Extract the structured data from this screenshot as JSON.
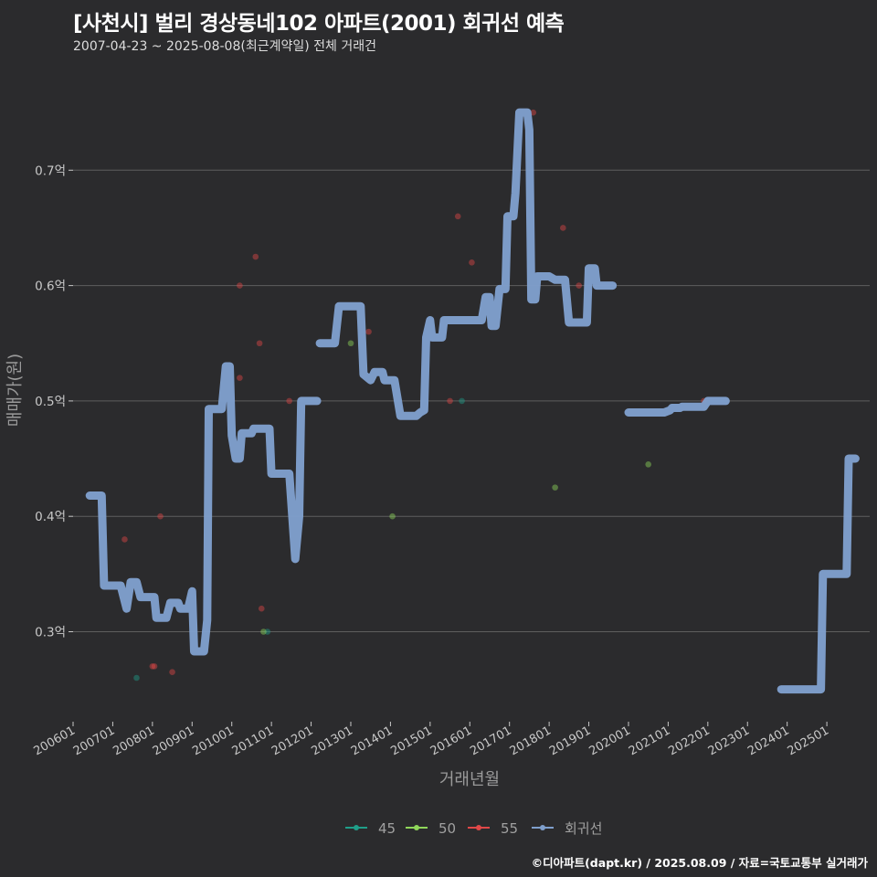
{
  "title": "[사천시] 벌리 경상동네102 아파트(2001) 회귀선 예측",
  "subtitle": "2007-04-23 ~ 2025-08-08(최근계약일) 전체 거래건",
  "caption": "©디아파트(dapt.kr) / 2025.08.09 / 자료=국토교통부 실거래가",
  "colors": {
    "background": "#2b2b2d",
    "grid": "#5e5e5e",
    "s45": "#1f9e89",
    "s50": "#8fd65a",
    "s55": "#e04848",
    "regression": "#7f9fcc"
  },
  "chart_data": {
    "type": "line",
    "xlabel": "거래년월",
    "ylabel": "매매가(원)",
    "xlim": [
      2006.0,
      2026.08
    ],
    "ylim": [
      0.222,
      0.8
    ],
    "y_ticks": [
      {
        "value": 0.3,
        "label": "0.3억"
      },
      {
        "value": 0.4,
        "label": "0.4억"
      },
      {
        "value": 0.5,
        "label": "0.5억"
      },
      {
        "value": 0.6,
        "label": "0.6억"
      },
      {
        "value": 0.7,
        "label": "0.7억"
      }
    ],
    "x_ticks": [
      {
        "value": 2006,
        "label": "200601"
      },
      {
        "value": 2007,
        "label": "200701"
      },
      {
        "value": 2008,
        "label": "200801"
      },
      {
        "value": 2009,
        "label": "200901"
      },
      {
        "value": 2010,
        "label": "201001"
      },
      {
        "value": 2011,
        "label": "201101"
      },
      {
        "value": 2012,
        "label": "201201"
      },
      {
        "value": 2013,
        "label": "201301"
      },
      {
        "value": 2014,
        "label": "201401"
      },
      {
        "value": 2015,
        "label": "201501"
      },
      {
        "value": 2016,
        "label": "201601"
      },
      {
        "value": 2017,
        "label": "201701"
      },
      {
        "value": 2018,
        "label": "201801"
      },
      {
        "value": 2019,
        "label": "201901"
      },
      {
        "value": 2020,
        "label": "202001"
      },
      {
        "value": 2021,
        "label": "202101"
      },
      {
        "value": 2022,
        "label": "202201"
      },
      {
        "value": 2023,
        "label": "202301"
      },
      {
        "value": 2024,
        "label": "202401"
      },
      {
        "value": 2025,
        "label": "202501"
      }
    ],
    "legend": {
      "position": "bottom",
      "items": [
        {
          "label": "45",
          "color": "#1f9e89"
        },
        {
          "label": "50",
          "color": "#8fd65a"
        },
        {
          "label": "55",
          "color": "#e04848"
        },
        {
          "label": "회귀선",
          "color": "#7f9fcc"
        }
      ]
    },
    "scatter": [
      {
        "group": "45",
        "points": [
          [
            2007.6,
            0.26
          ],
          [
            2010.9,
            0.3
          ],
          [
            2015.8,
            0.5
          ]
        ]
      },
      {
        "group": "50",
        "points": [
          [
            2010.8,
            0.3
          ],
          [
            2013.0,
            0.55
          ],
          [
            2014.05,
            0.4
          ],
          [
            2018.15,
            0.425
          ],
          [
            2020.5,
            0.445
          ]
        ]
      },
      {
        "group": "55",
        "points": [
          [
            2007.3,
            0.38
          ],
          [
            2008.0,
            0.27
          ],
          [
            2008.05,
            0.27
          ],
          [
            2008.2,
            0.4
          ],
          [
            2008.5,
            0.265
          ],
          [
            2010.2,
            0.52
          ],
          [
            2010.2,
            0.6
          ],
          [
            2010.6,
            0.625
          ],
          [
            2010.7,
            0.55
          ],
          [
            2010.75,
            0.32
          ],
          [
            2011.45,
            0.5
          ],
          [
            2013.45,
            0.56
          ],
          [
            2015.5,
            0.5
          ],
          [
            2015.7,
            0.66
          ],
          [
            2016.05,
            0.62
          ],
          [
            2017.6,
            0.75
          ],
          [
            2018.35,
            0.65
          ],
          [
            2018.75,
            0.6
          ],
          [
            2021.9,
            0.5
          ]
        ]
      }
    ],
    "regression_segments": [
      [
        [
          2006.42,
          0.418
        ],
        [
          2006.72,
          0.418
        ],
        [
          2006.78,
          0.34
        ],
        [
          2007.2,
          0.34
        ],
        [
          2007.35,
          0.32
        ],
        [
          2007.45,
          0.343
        ],
        [
          2007.6,
          0.343
        ],
        [
          2007.7,
          0.33
        ],
        [
          2008.05,
          0.33
        ],
        [
          2008.1,
          0.312
        ],
        [
          2008.35,
          0.312
        ],
        [
          2008.45,
          0.325
        ],
        [
          2008.65,
          0.325
        ],
        [
          2008.7,
          0.32
        ],
        [
          2008.9,
          0.32
        ],
        [
          2009.0,
          0.335
        ],
        [
          2009.05,
          0.283
        ],
        [
          2009.3,
          0.283
        ],
        [
          2009.38,
          0.31
        ],
        [
          2009.42,
          0.493
        ],
        [
          2009.75,
          0.493
        ],
        [
          2009.85,
          0.53
        ],
        [
          2009.95,
          0.53
        ],
        [
          2010.0,
          0.47
        ],
        [
          2010.1,
          0.45
        ],
        [
          2010.2,
          0.45
        ],
        [
          2010.25,
          0.472
        ],
        [
          2010.5,
          0.472
        ],
        [
          2010.55,
          0.476
        ],
        [
          2010.95,
          0.476
        ],
        [
          2011.0,
          0.437
        ],
        [
          2011.3,
          0.437
        ],
        [
          2011.45,
          0.437
        ],
        [
          2011.6,
          0.363
        ],
        [
          2011.7,
          0.4
        ],
        [
          2011.75,
          0.5
        ],
        [
          2012.15,
          0.5
        ]
      ],
      [
        [
          2012.22,
          0.55
        ],
        [
          2012.6,
          0.55
        ],
        [
          2012.7,
          0.582
        ],
        [
          2013.25,
          0.582
        ],
        [
          2013.32,
          0.523
        ],
        [
          2013.5,
          0.518
        ],
        [
          2013.6,
          0.525
        ],
        [
          2013.8,
          0.525
        ],
        [
          2013.85,
          0.518
        ],
        [
          2014.1,
          0.518
        ],
        [
          2014.25,
          0.487
        ],
        [
          2014.65,
          0.487
        ],
        [
          2014.75,
          0.49
        ],
        [
          2014.85,
          0.492
        ],
        [
          2014.9,
          0.555
        ],
        [
          2015.0,
          0.57
        ],
        [
          2015.05,
          0.555
        ],
        [
          2015.3,
          0.555
        ],
        [
          2015.35,
          0.57
        ],
        [
          2015.55,
          0.57
        ],
        [
          2016.3,
          0.57
        ],
        [
          2016.4,
          0.59
        ],
        [
          2016.5,
          0.59
        ],
        [
          2016.55,
          0.565
        ],
        [
          2016.65,
          0.565
        ],
        [
          2016.75,
          0.597
        ],
        [
          2016.9,
          0.597
        ],
        [
          2016.95,
          0.66
        ],
        [
          2017.1,
          0.66
        ],
        [
          2017.15,
          0.68
        ],
        [
          2017.25,
          0.75
        ],
        [
          2017.45,
          0.75
        ],
        [
          2017.5,
          0.735
        ],
        [
          2017.55,
          0.588
        ],
        [
          2017.65,
          0.588
        ],
        [
          2017.7,
          0.608
        ],
        [
          2018.0,
          0.608
        ],
        [
          2018.15,
          0.605
        ],
        [
          2018.4,
          0.605
        ],
        [
          2018.5,
          0.568
        ],
        [
          2018.95,
          0.568
        ],
        [
          2019.0,
          0.615
        ],
        [
          2019.15,
          0.615
        ],
        [
          2019.2,
          0.6
        ],
        [
          2019.6,
          0.6
        ]
      ],
      [
        [
          2020.0,
          0.49
        ],
        [
          2020.9,
          0.49
        ],
        [
          2021.05,
          0.492
        ],
        [
          2021.1,
          0.494
        ],
        [
          2021.3,
          0.494
        ],
        [
          2021.35,
          0.495
        ],
        [
          2021.9,
          0.495
        ],
        [
          2022.0,
          0.5
        ],
        [
          2022.45,
          0.5
        ]
      ],
      [
        [
          2023.85,
          0.25
        ],
        [
          2024.85,
          0.25
        ],
        [
          2024.9,
          0.35
        ],
        [
          2025.5,
          0.35
        ],
        [
          2025.55,
          0.45
        ],
        [
          2025.72,
          0.45
        ]
      ]
    ]
  }
}
